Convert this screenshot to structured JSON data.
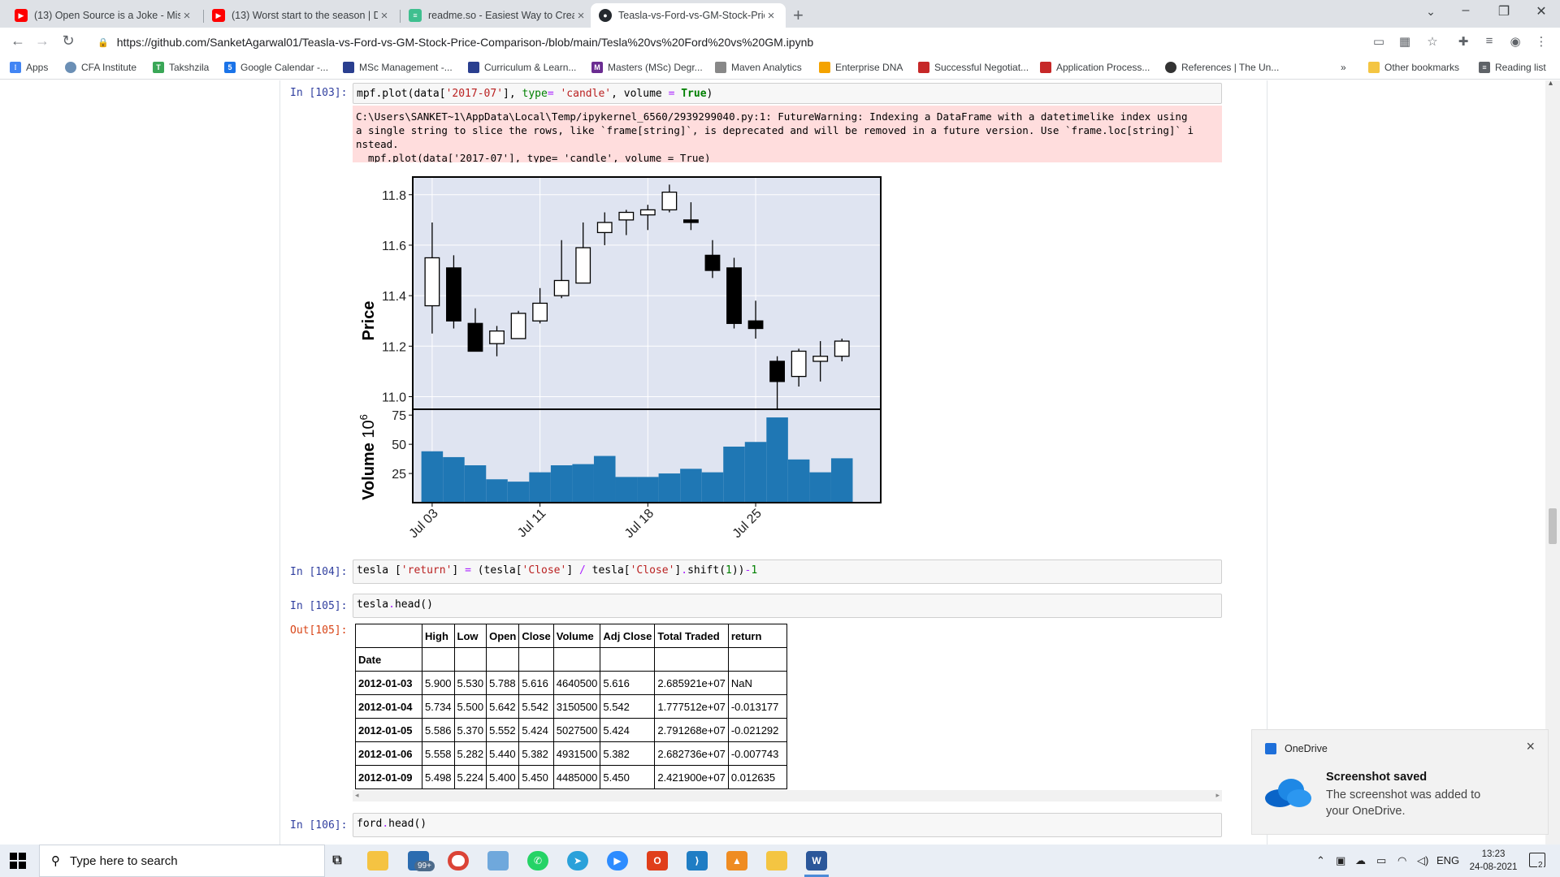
{
  "browser": {
    "tabs": [
      {
        "title": "(13) Open Source is a Joke - Misl",
        "favicon": "youtube-icon",
        "color": "#ff0000"
      },
      {
        "title": "(13) Worst start to the season | D",
        "favicon": "youtube-icon",
        "color": "#ff0000"
      },
      {
        "title": "readme.so - Easiest Way to Creat",
        "favicon": "readme-icon",
        "color": "#3fbf8f"
      },
      {
        "title": "Teasla-vs-Ford-vs-GM-Stock-Pric",
        "favicon": "github-icon",
        "color": "#24292e"
      }
    ],
    "url": "https://github.com/SanketAgarwal01/Teasla-vs-Ford-vs-GM-Stock-Price-Comparison-/blob/main/Tesla%20vs%20Ford%20vs%20GM.ipynb",
    "bookmarks": [
      {
        "label": "Apps",
        "color": "#4285f4"
      },
      {
        "label": "CFA Institute",
        "color": "#6b8fb5"
      },
      {
        "label": "Takshzila",
        "color": "#3aa757"
      },
      {
        "label": "Google Calendar -...",
        "color": "#1a73e8"
      },
      {
        "label": "MSc Management -...",
        "color": "#2a3f8f"
      },
      {
        "label": "Curriculum & Learn...",
        "color": "#2a3f8f"
      },
      {
        "label": "Masters (MSc) Degr...",
        "color": "#6a2c91"
      },
      {
        "label": "Maven Analytics",
        "color": "#888888"
      },
      {
        "label": "Enterprise DNA",
        "color": "#f4a300"
      },
      {
        "label": "Successful Negotiat...",
        "color": "#c62828"
      },
      {
        "label": "Application Process...",
        "color": "#c62828"
      },
      {
        "label": "References | The Un...",
        "color": "#333333"
      }
    ],
    "bookmarks_overflow": "»",
    "other_bookmarks": "Other bookmarks",
    "reading_list": "Reading list"
  },
  "notebook": {
    "cells": [
      {
        "prompt": "In [103]:",
        "code": "mpf.plot(data['2017-07'], type= 'candle', volume = True)"
      },
      {
        "prompt": "In [104]:",
        "code": "tesla ['return'] = (tesla['Close'] / tesla['Close'].shift(1))-1"
      },
      {
        "prompt": "In [105]:",
        "code": "tesla.head()"
      },
      {
        "prompt": "In [106]:",
        "code": "ford.head()"
      }
    ],
    "warning_lines": [
      "C:\\Users\\SANKET~1\\AppData\\Local\\Temp/ipykernel_6560/2939299040.py:1: FutureWarning: Indexing a DataFrame with a datetimelike index using",
      "a single string to slice the rows, like `frame[string]`, is deprecated and will be removed in a future version. Use `frame.loc[string]` i",
      "nstead.",
      "  mpf.plot(data['2017-07'], type= 'candle', volume = True)"
    ],
    "out_prompt": "Out[105]:",
    "table": {
      "columns": [
        "High",
        "Low",
        "Open",
        "Close",
        "Volume",
        "Adj Close",
        "Total Traded",
        "return"
      ],
      "index_name": "Date",
      "rows": [
        {
          "date": "2012-01-03",
          "values": [
            "5.900",
            "5.530",
            "5.788",
            "5.616",
            "4640500",
            "5.616",
            "2.685921e+07",
            "NaN"
          ]
        },
        {
          "date": "2012-01-04",
          "values": [
            "5.734",
            "5.500",
            "5.642",
            "5.542",
            "3150500",
            "5.542",
            "1.777512e+07",
            "-0.013177"
          ]
        },
        {
          "date": "2012-01-05",
          "values": [
            "5.586",
            "5.370",
            "5.552",
            "5.424",
            "5027500",
            "5.424",
            "2.791268e+07",
            "-0.021292"
          ]
        },
        {
          "date": "2012-01-06",
          "values": [
            "5.558",
            "5.282",
            "5.440",
            "5.382",
            "4931500",
            "5.382",
            "2.682736e+07",
            "-0.007743"
          ]
        },
        {
          "date": "2012-01-09",
          "values": [
            "5.498",
            "5.224",
            "5.400",
            "5.450",
            "4485000",
            "5.450",
            "2.421900e+07",
            "0.012635"
          ]
        }
      ]
    }
  },
  "chart_data": {
    "type": "candlestick",
    "ylabel": "Price",
    "volume_label": "Volume",
    "volume_exponent": "6",
    "price_ticks": [
      "11.8",
      "11.6",
      "11.4",
      "11.2",
      "11.0"
    ],
    "volume_ticks": [
      "75",
      "50",
      "25"
    ],
    "x_ticks": [
      "Jul 03",
      "Jul 11",
      "Jul 18",
      "Jul 25"
    ],
    "ylim": [
      10.95,
      11.87
    ],
    "volume_ylim": [
      0,
      80
    ],
    "candles": [
      {
        "o": 11.36,
        "h": 11.69,
        "l": 11.25,
        "c": 11.55,
        "v": 44
      },
      {
        "o": 11.51,
        "h": 11.56,
        "l": 11.27,
        "c": 11.3,
        "v": 39
      },
      {
        "o": 11.29,
        "h": 11.35,
        "l": 11.18,
        "c": 11.18,
        "v": 32
      },
      {
        "o": 11.21,
        "h": 11.28,
        "l": 11.16,
        "c": 11.26,
        "v": 20
      },
      {
        "o": 11.23,
        "h": 11.34,
        "l": 11.23,
        "c": 11.33,
        "v": 18
      },
      {
        "o": 11.3,
        "h": 11.43,
        "l": 11.29,
        "c": 11.37,
        "v": 26
      },
      {
        "o": 11.4,
        "h": 11.62,
        "l": 11.39,
        "c": 11.46,
        "v": 32
      },
      {
        "o": 11.45,
        "h": 11.69,
        "l": 11.45,
        "c": 11.59,
        "v": 33
      },
      {
        "o": 11.65,
        "h": 11.73,
        "l": 11.6,
        "c": 11.69,
        "v": 40
      },
      {
        "o": 11.7,
        "h": 11.74,
        "l": 11.64,
        "c": 11.73,
        "v": 22
      },
      {
        "o": 11.72,
        "h": 11.76,
        "l": 11.66,
        "c": 11.74,
        "v": 22
      },
      {
        "o": 11.74,
        "h": 11.84,
        "l": 11.73,
        "c": 11.81,
        "v": 25
      },
      {
        "o": 11.7,
        "h": 11.77,
        "l": 11.66,
        "c": 11.69,
        "v": 29
      },
      {
        "o": 11.56,
        "h": 11.62,
        "l": 11.47,
        "c": 11.5,
        "v": 26
      },
      {
        "o": 11.51,
        "h": 11.55,
        "l": 11.27,
        "c": 11.29,
        "v": 48
      },
      {
        "o": 11.3,
        "h": 11.38,
        "l": 11.23,
        "c": 11.27,
        "v": 52
      },
      {
        "o": 11.14,
        "h": 11.16,
        "l": 10.95,
        "c": 11.06,
        "v": 73
      },
      {
        "o": 11.08,
        "h": 11.19,
        "l": 11.04,
        "c": 11.18,
        "v": 37
      },
      {
        "o": 11.14,
        "h": 11.22,
        "l": 11.06,
        "c": 11.16,
        "v": 26
      },
      {
        "o": 11.16,
        "h": 11.23,
        "l": 11.14,
        "c": 11.22,
        "v": 38
      }
    ]
  },
  "toast": {
    "app": "OneDrive",
    "title": "Screenshot saved",
    "body": "The screenshot was added to your OneDrive.",
    "close": "×"
  },
  "taskbar": {
    "search_placeholder": "Type here to search",
    "badge": "99+",
    "language": "ENG",
    "time": "13:23",
    "date": "24-08-2021",
    "notifications": "2"
  }
}
